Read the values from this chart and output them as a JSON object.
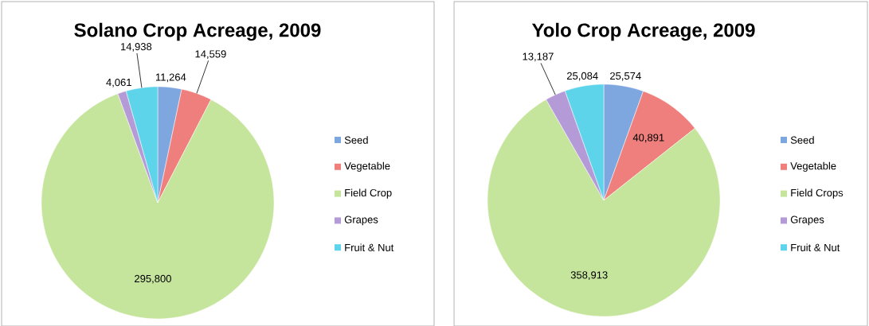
{
  "chart_data": [
    {
      "type": "pie",
      "title": "Solano Crop Acreage, 2009",
      "categories": [
        "Seed",
        "Vegetable",
        "Field Crop",
        "Grapes",
        "Fruit & Nut"
      ],
      "values": [
        11264,
        14559,
        295800,
        4061,
        14938
      ],
      "value_labels": [
        "11,264",
        "14,559",
        "295,800",
        "4,061",
        "14,938"
      ],
      "colors": [
        "#7ea7e0",
        "#ee7f7c",
        "#c6e59c",
        "#b59ad8",
        "#5ed4eb"
      ],
      "legend": "right"
    },
    {
      "type": "pie",
      "title": "Yolo Crop Acreage, 2009",
      "categories": [
        "Seed",
        "Vegetable",
        "Field Crops",
        "Grapes",
        "Fruit & Nut"
      ],
      "values": [
        25574,
        40891,
        358913,
        13187,
        25084
      ],
      "value_labels": [
        "25,574",
        "40,891",
        "358,913",
        "13,187",
        "25,084"
      ],
      "colors": [
        "#7ea7e0",
        "#ee7f7c",
        "#c6e59c",
        "#b59ad8",
        "#5ed4eb"
      ],
      "legend": "right"
    }
  ]
}
